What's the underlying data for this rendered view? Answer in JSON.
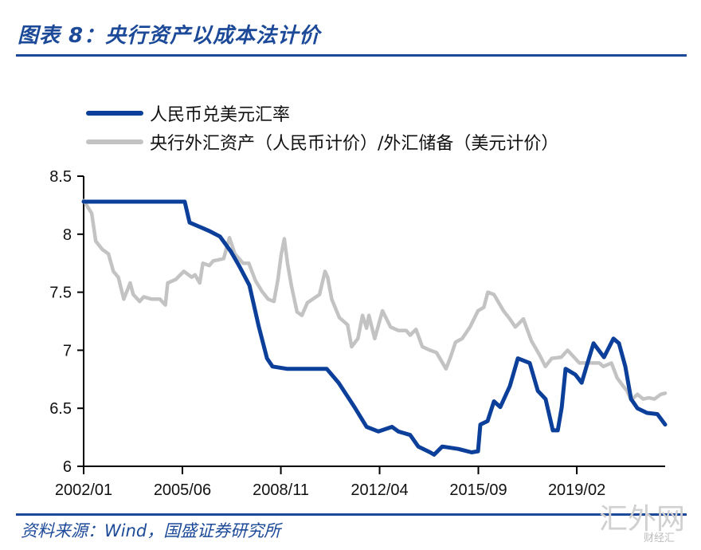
{
  "title": "图表 8：央行资产以成本法计价",
  "source": "资料来源：Wind，国盛证券研究所",
  "watermark": "汇外网",
  "watermark_sub": "财经汇",
  "chart_data": {
    "type": "line",
    "title": "央行资产以成本法计价",
    "xlabel": "",
    "ylabel": "",
    "ylim": [
      6,
      8.5
    ],
    "xlim": [
      2002.0,
      2022.14
    ],
    "yticks": [
      6,
      6.5,
      7,
      7.5,
      8,
      8.5
    ],
    "ytick_labels": [
      "6",
      "6.5",
      "7",
      "7.5",
      "8",
      "8.5"
    ],
    "xticks": [
      2002.0,
      2005.42,
      2008.83,
      2012.25,
      2015.67,
      2019.08
    ],
    "xtick_labels": [
      "2002/01",
      "2005/06",
      "2008/11",
      "2012/04",
      "2015/09",
      "2019/02"
    ],
    "grid": false,
    "legend_position": "top-left",
    "series": [
      {
        "name": "人民币兑美元汇率",
        "color": "#0b3f99",
        "x": [
          2002.0,
          2005.5,
          2005.67,
          2006.33,
          2006.72,
          2007.1,
          2007.38,
          2007.74,
          2008.07,
          2008.35,
          2008.54,
          2009.04,
          2010.42,
          2010.83,
          2011.38,
          2011.8,
          2012.21,
          2012.68,
          2012.9,
          2013.31,
          2013.59,
          2014.0,
          2014.14,
          2014.42,
          2014.97,
          2015.44,
          2015.66,
          2015.74,
          2015.99,
          2016.21,
          2016.43,
          2016.76,
          2017.04,
          2017.45,
          2017.73,
          2018.0,
          2018.25,
          2018.42,
          2018.56,
          2018.69,
          2019.03,
          2019.25,
          2019.44,
          2019.66,
          2020.02,
          2020.35,
          2020.54,
          2020.76,
          2020.96,
          2021.18,
          2021.51,
          2021.87,
          2022.14
        ],
        "values": [
          8.28,
          8.28,
          8.1,
          8.03,
          7.98,
          7.85,
          7.73,
          7.56,
          7.2,
          6.93,
          6.86,
          6.84,
          6.84,
          6.72,
          6.51,
          6.34,
          6.3,
          6.34,
          6.3,
          6.27,
          6.17,
          6.12,
          6.1,
          6.17,
          6.15,
          6.12,
          6.13,
          6.36,
          6.39,
          6.56,
          6.51,
          6.69,
          6.93,
          6.89,
          6.65,
          6.58,
          6.31,
          6.31,
          6.51,
          6.84,
          6.79,
          6.72,
          6.88,
          7.06,
          6.94,
          7.1,
          7.06,
          6.86,
          6.58,
          6.5,
          6.46,
          6.45,
          6.36
        ]
      },
      {
        "name": "央行外汇资产（人民币计价）/外汇储备（美元计价）",
        "color": "#c3c3c3",
        "x": [
          2002.0,
          2002.28,
          2002.42,
          2002.64,
          2002.86,
          2003.03,
          2003.2,
          2003.39,
          2003.61,
          2003.72,
          2003.94,
          2004.08,
          2004.36,
          2004.64,
          2004.83,
          2004.91,
          2005.19,
          2005.47,
          2005.74,
          2005.86,
          2006.02,
          2006.13,
          2006.35,
          2006.49,
          2006.68,
          2006.85,
          2007.05,
          2007.24,
          2007.52,
          2007.72,
          2007.95,
          2008.17,
          2008.39,
          2008.59,
          2008.73,
          2008.84,
          2008.95,
          2009.06,
          2009.2,
          2009.39,
          2009.56,
          2009.75,
          2010.17,
          2010.36,
          2010.45,
          2010.59,
          2010.86,
          2011.14,
          2011.28,
          2011.5,
          2011.66,
          2011.8,
          2011.88,
          2012.08,
          2012.35,
          2012.63,
          2012.9,
          2013.17,
          2013.31,
          2013.51,
          2013.73,
          2014.0,
          2014.22,
          2014.55,
          2014.69,
          2014.88,
          2015.11,
          2015.38,
          2015.66,
          2015.86,
          2016.0,
          2016.21,
          2016.54,
          2016.76,
          2016.95,
          2017.23,
          2017.51,
          2017.79,
          2017.99,
          2018.21,
          2018.54,
          2018.76,
          2019.17,
          2019.44,
          2019.86,
          2020.0,
          2020.28,
          2020.48,
          2020.69,
          2020.82,
          2020.96,
          2021.18,
          2021.38,
          2021.57,
          2021.77,
          2021.99,
          2022.14
        ],
        "values": [
          8.29,
          8.18,
          7.94,
          7.87,
          7.83,
          7.68,
          7.63,
          7.44,
          7.58,
          7.48,
          7.42,
          7.46,
          7.44,
          7.44,
          7.39,
          7.58,
          7.61,
          7.68,
          7.63,
          7.65,
          7.58,
          7.75,
          7.73,
          7.77,
          7.78,
          7.79,
          7.97,
          7.83,
          7.75,
          7.75,
          7.6,
          7.51,
          7.44,
          7.42,
          7.61,
          7.82,
          7.96,
          7.75,
          7.55,
          7.33,
          7.3,
          7.41,
          7.48,
          7.68,
          7.63,
          7.44,
          7.28,
          7.22,
          7.03,
          7.1,
          7.3,
          7.19,
          7.3,
          7.1,
          7.34,
          7.2,
          7.17,
          7.17,
          7.13,
          7.18,
          7.03,
          7.0,
          6.98,
          6.84,
          6.93,
          7.07,
          7.1,
          7.2,
          7.34,
          7.37,
          7.5,
          7.48,
          7.34,
          7.27,
          7.2,
          7.27,
          7.08,
          6.96,
          6.86,
          6.93,
          6.94,
          7.0,
          6.89,
          6.89,
          6.89,
          6.86,
          6.89,
          6.76,
          6.69,
          6.65,
          6.57,
          6.62,
          6.58,
          6.59,
          6.58,
          6.62,
          6.63
        ]
      }
    ]
  }
}
